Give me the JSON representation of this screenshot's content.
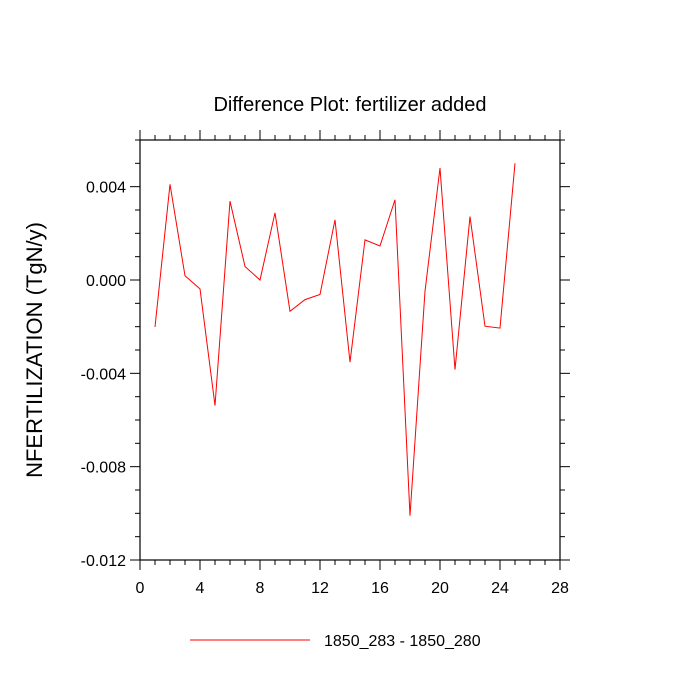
{
  "chart_data": {
    "type": "line",
    "title": "Difference Plot: fertilizer added",
    "xlabel": "",
    "ylabel": "NFERTILIZATION  (TgN/y)",
    "xlim": [
      0,
      28
    ],
    "ylim": [
      -0.012,
      0.006
    ],
    "x_ticks": [
      0,
      4,
      8,
      12,
      16,
      20,
      24,
      28
    ],
    "x_tick_labels": [
      "0",
      "4",
      "8",
      "12",
      "16",
      "20",
      "24",
      "28"
    ],
    "x_minor_step": 1,
    "y_ticks": [
      -0.012,
      -0.008,
      -0.004,
      0.0,
      0.004
    ],
    "y_tick_labels": [
      "-0.012",
      "-0.008",
      "-0.004",
      "0.000",
      "0.004"
    ],
    "y_minor_step": 0.001,
    "grid": false,
    "legend_position": "bottom",
    "series": [
      {
        "name": "1850_283 - 1850_280",
        "color": "#ff0000",
        "x": [
          1,
          2,
          3,
          4,
          5,
          6,
          7,
          8,
          9,
          10,
          11,
          12,
          13,
          14,
          15,
          16,
          17,
          18,
          19,
          20,
          21,
          22,
          23,
          24,
          25
        ],
        "y": [
          -0.00201,
          0.0041,
          0.00018,
          -0.00038,
          -0.00538,
          0.00338,
          0.00058,
          0.0,
          0.00288,
          -0.00134,
          -0.00084,
          -0.00062,
          0.00258,
          -0.00352,
          0.00172,
          0.00146,
          0.00344,
          -0.0101,
          -0.00048,
          0.0048,
          -0.00384,
          0.00272,
          -0.00198,
          -0.00206,
          0.005
        ]
      }
    ]
  }
}
